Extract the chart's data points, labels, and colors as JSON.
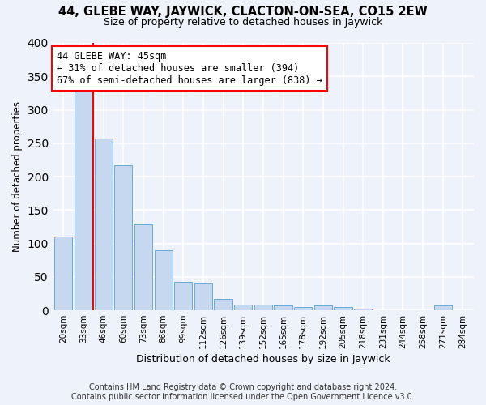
{
  "title": "44, GLEBE WAY, JAYWICK, CLACTON-ON-SEA, CO15 2EW",
  "subtitle": "Size of property relative to detached houses in Jaywick",
  "xlabel": "Distribution of detached houses by size in Jaywick",
  "ylabel": "Number of detached properties",
  "bar_labels": [
    "20sqm",
    "33sqm",
    "46sqm",
    "60sqm",
    "73sqm",
    "86sqm",
    "99sqm",
    "112sqm",
    "126sqm",
    "139sqm",
    "152sqm",
    "165sqm",
    "178sqm",
    "192sqm",
    "205sqm",
    "218sqm",
    "231sqm",
    "244sqm",
    "258sqm",
    "271sqm",
    "284sqm"
  ],
  "bar_values": [
    110,
    327,
    257,
    217,
    128,
    90,
    42,
    40,
    17,
    9,
    9,
    7,
    5,
    7,
    5,
    3,
    0,
    0,
    0,
    7,
    0
  ],
  "bar_color": "#c5d8f0",
  "bar_edgecolor": "#6aaad4",
  "annotation_text": "44 GLEBE WAY: 45sqm\n← 31% of detached houses are smaller (394)\n67% of semi-detached houses are larger (838) →",
  "annotation_box_color": "white",
  "annotation_box_edgecolor": "red",
  "vline_x": 2.0,
  "vline_color": "red",
  "ylim": [
    0,
    400
  ],
  "footnote": "Contains HM Land Registry data © Crown copyright and database right 2024.\nContains public sector information licensed under the Open Government Licence v3.0.",
  "background_color": "#eef2fa",
  "grid_color": "white"
}
